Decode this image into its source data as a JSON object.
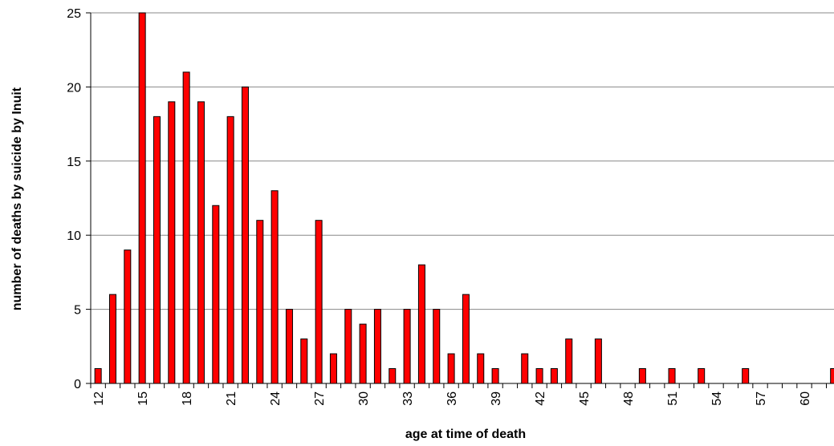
{
  "chart_data": {
    "type": "bar",
    "x_label": "age at time of death",
    "y_label": "number of deaths by suicide by Inuit",
    "categories": [
      "12",
      null,
      null,
      "15",
      null,
      null,
      "18",
      null,
      null,
      "21",
      null,
      null,
      "24",
      null,
      null,
      "27",
      null,
      null,
      "30",
      null,
      null,
      "33",
      null,
      null,
      "36",
      null,
      null,
      "39",
      null,
      null,
      "42",
      null,
      null,
      "45",
      null,
      null,
      "48",
      null,
      null,
      "51",
      null,
      null,
      "54",
      null,
      null,
      "57",
      null,
      null,
      "60",
      null,
      null
    ],
    "values": [
      1,
      6,
      9,
      25,
      18,
      19,
      21,
      19,
      12,
      18,
      20,
      11,
      13,
      5,
      3,
      11,
      2,
      5,
      4,
      5,
      1,
      5,
      8,
      5,
      2,
      6,
      2,
      1,
      0,
      2,
      1,
      1,
      3,
      0,
      3,
      0,
      0,
      1,
      0,
      1,
      0,
      1,
      0,
      0,
      1,
      0,
      0,
      0,
      0,
      0,
      1
    ],
    "color": "#ff0000",
    "ylim": [
      0,
      25
    ],
    "yticks": [
      0,
      5,
      10,
      15,
      20,
      25
    ],
    "grid": true
  }
}
